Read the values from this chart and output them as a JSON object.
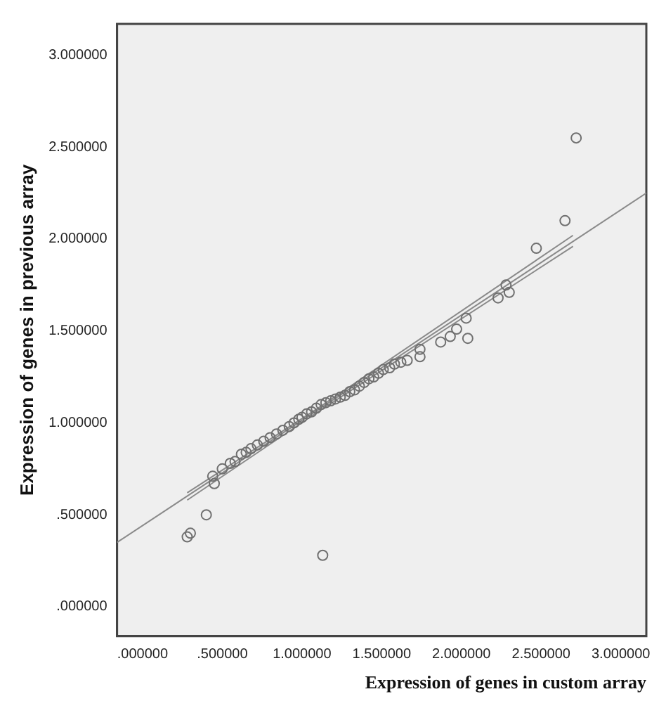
{
  "chart_data": {
    "type": "scatter",
    "xlabel": "Expression of genes in custom array",
    "ylabel": "Expression of genes in previous array",
    "xlim": [
      -0.16,
      3.16
    ],
    "ylim": [
      -0.16,
      3.17
    ],
    "xticks": [
      {
        "value": 0,
        "label": ".000000"
      },
      {
        "value": 0.5,
        "label": ".500000"
      },
      {
        "value": 1,
        "label": "1.000000"
      },
      {
        "value": 1.5,
        "label": "1.500000"
      },
      {
        "value": 2,
        "label": "2.000000"
      },
      {
        "value": 2.5,
        "label": "2.500000"
      },
      {
        "value": 3,
        "label": "3.000000"
      }
    ],
    "yticks": [
      {
        "value": 0,
        "label": ".000000"
      },
      {
        "value": 0.5,
        "label": ".500000"
      },
      {
        "value": 1,
        "label": "1.000000"
      },
      {
        "value": 1.5,
        "label": "1.500000"
      },
      {
        "value": 2,
        "label": "2.000000"
      },
      {
        "value": 2.5,
        "label": "2.500000"
      },
      {
        "value": 3,
        "label": "3.000000"
      }
    ],
    "grid": false,
    "legend": false,
    "series": [
      {
        "marker": "circle",
        "color": "#707070",
        "x": [
          0.28,
          0.3,
          0.4,
          1.13,
          0.44,
          0.45,
          0.5,
          0.55,
          0.58,
          0.62,
          0.65,
          0.68,
          0.72,
          0.76,
          0.8,
          0.84,
          0.88,
          0.92,
          0.95,
          0.98,
          1.0,
          1.03,
          1.06,
          1.09,
          1.12,
          1.15,
          1.18,
          1.21,
          1.24,
          1.27,
          1.3,
          1.33,
          1.36,
          1.39,
          1.42,
          1.45,
          1.48,
          1.51,
          1.55,
          1.58,
          1.62,
          1.66,
          1.74,
          1.74,
          1.87,
          1.93,
          1.97,
          2.03,
          2.04,
          2.23,
          2.28,
          2.3,
          2.47,
          2.65,
          2.72
        ],
        "values": [
          0.38,
          0.4,
          0.5,
          0.28,
          0.71,
          0.67,
          0.75,
          0.78,
          0.79,
          0.83,
          0.84,
          0.86,
          0.88,
          0.9,
          0.92,
          0.94,
          0.96,
          0.98,
          1.0,
          1.02,
          1.03,
          1.05,
          1.06,
          1.08,
          1.1,
          1.11,
          1.12,
          1.13,
          1.14,
          1.15,
          1.17,
          1.18,
          1.2,
          1.22,
          1.24,
          1.25,
          1.27,
          1.29,
          1.3,
          1.32,
          1.33,
          1.34,
          1.36,
          1.4,
          1.44,
          1.47,
          1.51,
          1.57,
          1.46,
          1.68,
          1.75,
          1.71,
          1.95,
          2.1,
          2.55
        ]
      },
      {
        "type": "line",
        "marker": "none",
        "color": "#8a8a8a",
        "x": [
          -0.16,
          3.16
        ],
        "values": [
          0.35,
          2.25
        ]
      },
      {
        "type": "line",
        "marker": "none",
        "color": "#8a8a8a",
        "x": [
          0.28,
          1.1,
          2.7
        ],
        "values": [
          0.62,
          1.08,
          2.02
        ]
      },
      {
        "type": "line",
        "marker": "none",
        "color": "#8a8a8a",
        "x": [
          0.28,
          1.1,
          2.7
        ],
        "values": [
          0.58,
          1.06,
          1.96
        ]
      }
    ]
  }
}
